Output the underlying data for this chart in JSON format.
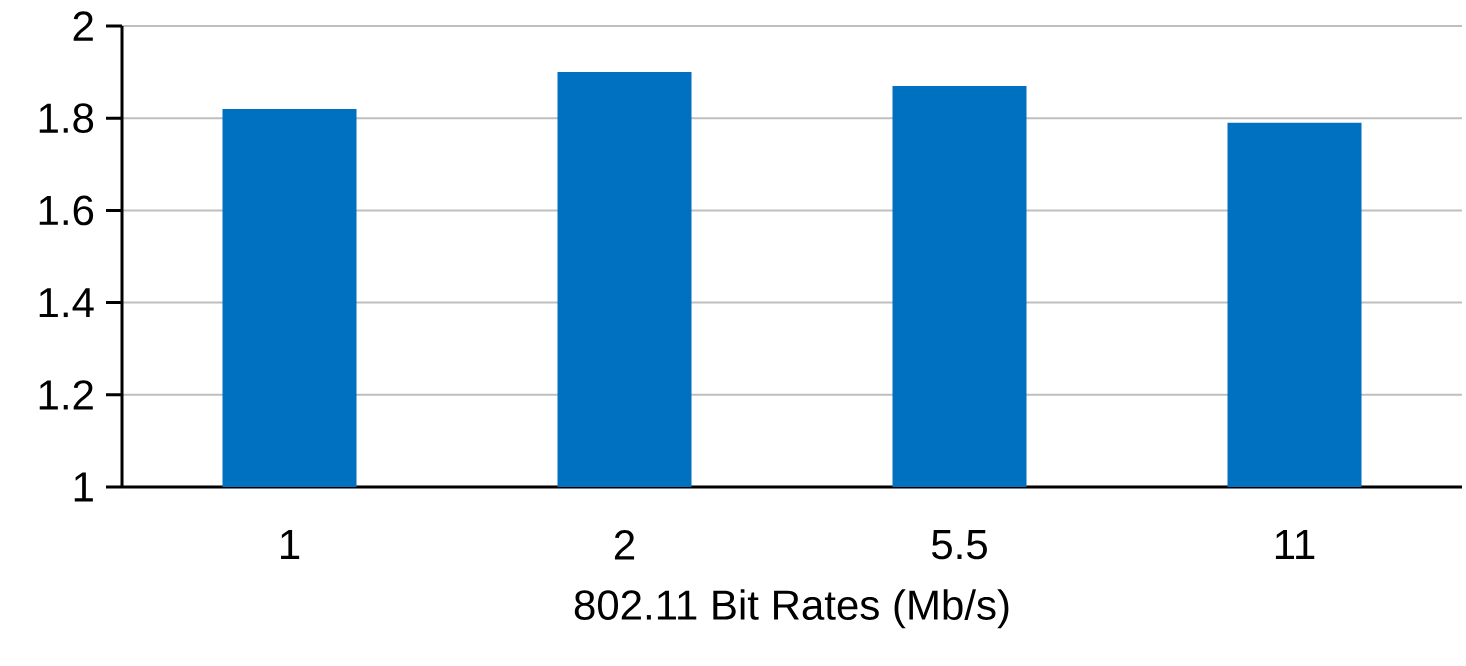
{
  "chart_data": {
    "type": "bar",
    "xlabel": "802.11 Bit Rates (Mb/s)",
    "categories": [
      "1",
      "2",
      "5.5",
      "11"
    ],
    "values": [
      1.82,
      1.9,
      1.87,
      1.79
    ],
    "color": "#0070c0",
    "ylim": [
      1,
      2
    ],
    "yticks": [
      1,
      1.2,
      1.4,
      1.6,
      1.8,
      2
    ],
    "grid": "y"
  }
}
